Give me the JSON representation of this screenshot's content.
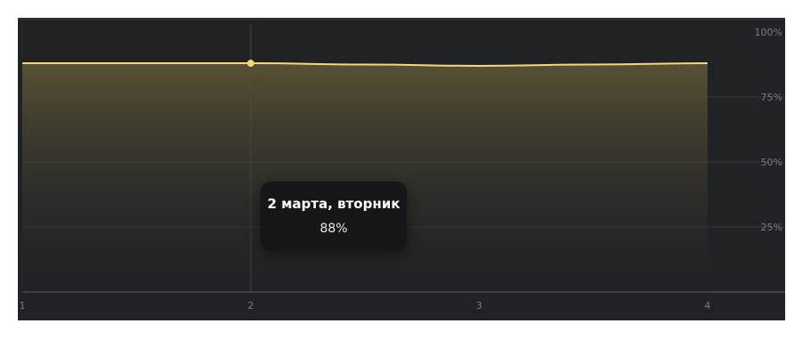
{
  "chart_data": {
    "type": "area",
    "x": [
      1,
      1.5,
      2,
      2.5,
      3,
      3.5,
      4
    ],
    "values": [
      88,
      88,
      88,
      87.5,
      87,
      87.5,
      88
    ],
    "x_ticks": [
      "1",
      "2",
      "3",
      "4"
    ],
    "y_ticks": [
      "25%",
      "50%",
      "75%",
      "100%"
    ],
    "xlim": [
      1,
      4
    ],
    "ylim": [
      0,
      100
    ],
    "grid": true,
    "line_color": "#f5d87a",
    "fill_color": "#5a5335",
    "highlight": {
      "x": 2,
      "label": "2 марта, вторник",
      "value_label": "88%"
    }
  }
}
